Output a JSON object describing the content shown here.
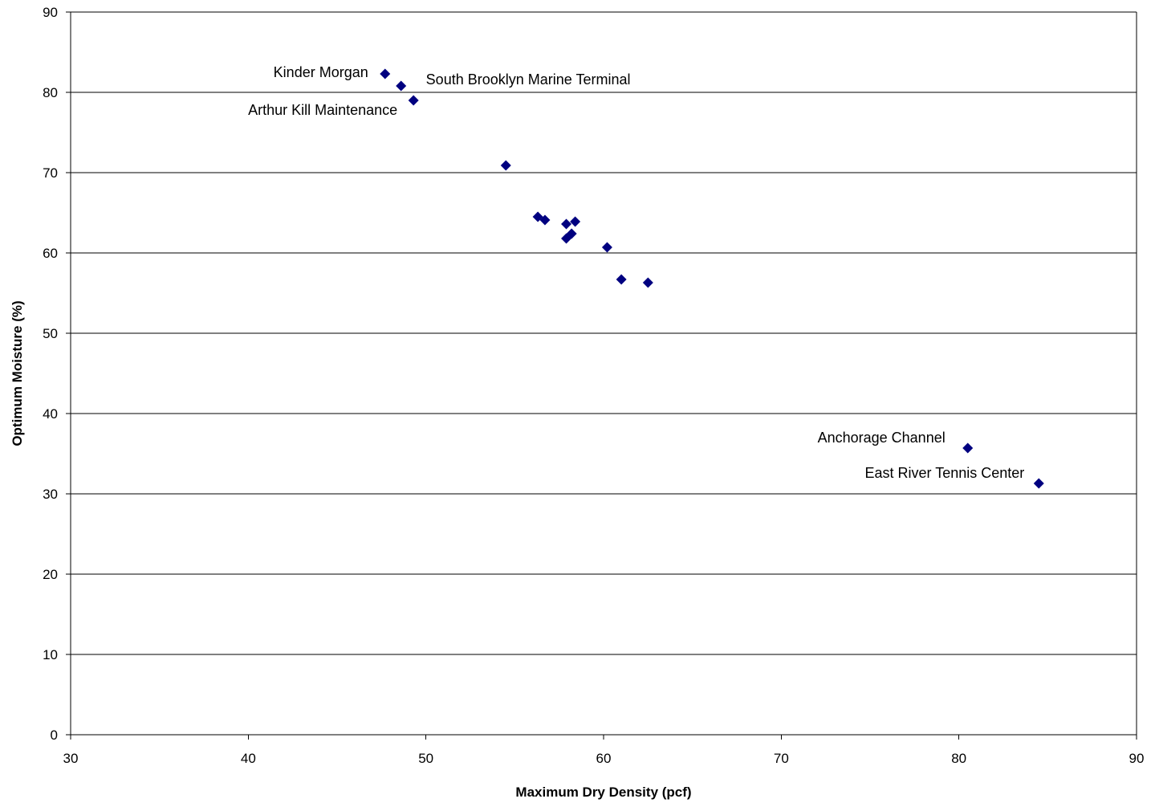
{
  "chart_data": {
    "type": "scatter",
    "title": "",
    "xlabel": "Maximum Dry Density (pcf)",
    "ylabel": "Optimum Moisture (%)",
    "xlim": [
      30,
      90
    ],
    "ylim": [
      0,
      90
    ],
    "xticks": [
      30,
      40,
      50,
      60,
      70,
      80,
      90
    ],
    "yticks": [
      0,
      10,
      20,
      30,
      40,
      50,
      60,
      70,
      80,
      90
    ],
    "grid": "horizontal",
    "legend": "none",
    "marker": "diamond",
    "marker_color": "#000080",
    "grid_color": "#000000",
    "points": [
      {
        "x": 47.7,
        "y": 82.3,
        "label": "Kinder Morgan"
      },
      {
        "x": 48.6,
        "y": 80.8,
        "label": "South Brooklyn Marine Terminal"
      },
      {
        "x": 49.3,
        "y": 79.0,
        "label": "Arthur Kill Maintenance"
      },
      {
        "x": 54.5,
        "y": 70.9,
        "label": ""
      },
      {
        "x": 56.3,
        "y": 64.5,
        "label": ""
      },
      {
        "x": 56.7,
        "y": 64.1,
        "label": ""
      },
      {
        "x": 57.9,
        "y": 63.6,
        "label": ""
      },
      {
        "x": 58.4,
        "y": 63.9,
        "label": ""
      },
      {
        "x": 57.9,
        "y": 61.8,
        "label": ""
      },
      {
        "x": 58.2,
        "y": 62.4,
        "label": ""
      },
      {
        "x": 60.2,
        "y": 60.7,
        "label": ""
      },
      {
        "x": 61.0,
        "y": 56.7,
        "label": ""
      },
      {
        "x": 62.5,
        "y": 56.3,
        "label": ""
      },
      {
        "x": 80.5,
        "y": 35.7,
        "label": "Anchorage Channel"
      },
      {
        "x": 84.5,
        "y": 31.3,
        "label": "East River Tennis Center"
      }
    ]
  }
}
